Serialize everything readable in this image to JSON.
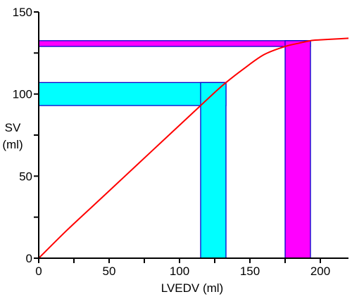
{
  "chart_data": {
    "type": "line",
    "title": "",
    "xlabel": "LVEDV (ml)",
    "ylabel": [
      "SV",
      "(ml)"
    ],
    "xlim": [
      0,
      220
    ],
    "ylim": [
      0,
      150
    ],
    "x_ticks_labeled": [
      0,
      50,
      100,
      150,
      200
    ],
    "x_ticks_minor": [
      25,
      75,
      125,
      175
    ],
    "y_ticks_labeled": [
      0,
      50,
      100,
      150
    ],
    "y_ticks_minor": [
      25,
      75,
      125
    ],
    "grid": false,
    "series": [
      {
        "color": "#ff0000",
        "x": [
          0,
          20,
          40,
          60,
          80,
          100,
          115,
          125,
          133,
          145,
          160,
          175,
          185,
          193,
          200,
          210,
          220
        ],
        "y": [
          0,
          17,
          33,
          49,
          65,
          81,
          93,
          101,
          107,
          115,
          124,
          129,
          131,
          132.5,
          133,
          133.5,
          134
        ]
      }
    ],
    "highlight_bands": [
      {
        "color": "#00ffff",
        "x": [
          115,
          133
        ],
        "y": [
          93,
          107
        ]
      },
      {
        "color": "#ff00ff",
        "x": [
          175,
          193
        ],
        "y": [
          129,
          132.5
        ]
      }
    ],
    "band_edge_color": "#0000cc"
  }
}
